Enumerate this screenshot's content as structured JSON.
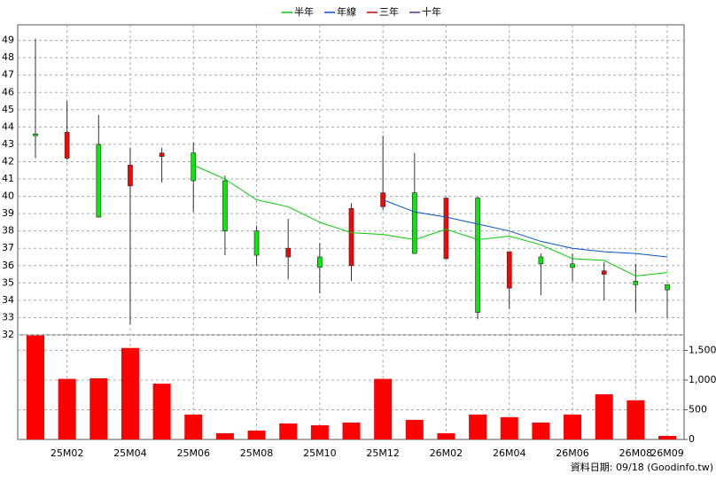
{
  "chart_data": [
    {
      "type": "candlestick",
      "categories": [
        null,
        "25M02",
        null,
        "25M04",
        null,
        "25M06",
        null,
        "25M08",
        null,
        "25M10",
        null,
        "25M12",
        null,
        "26M02",
        null,
        "26M04",
        null,
        "26M06",
        null,
        "26M08",
        "26M09"
      ],
      "open": [
        43.6,
        42.2,
        43.0,
        40.6,
        42.3,
        42.5,
        40.9,
        38.0,
        36.5,
        36.5,
        36.0,
        39.4,
        40.2,
        36.4,
        39.9,
        34.7,
        36.5,
        36.1,
        35.5,
        35.1,
        34.9
      ],
      "high": [
        49.1,
        45.5,
        44.7,
        42.8,
        42.8,
        43.1,
        41.2,
        38.3,
        38.7,
        37.3,
        39.6,
        43.5,
        42.5,
        39.9,
        40.0,
        36.8,
        36.7,
        36.7,
        36.2,
        36.1,
        34.9
      ],
      "low": [
        42.2,
        42.1,
        38.8,
        32.6,
        40.8,
        39.1,
        36.6,
        36.0,
        35.2,
        34.4,
        35.1,
        39.2,
        36.7,
        36.4,
        32.9,
        33.5,
        34.3,
        35.1,
        34.0,
        33.3,
        33.0
      ],
      "close": [
        43.5,
        43.7,
        38.8,
        41.8,
        42.5,
        40.9,
        38.0,
        36.6,
        37.0,
        35.9,
        39.3,
        40.2,
        36.7,
        39.9,
        33.3,
        36.8,
        36.1,
        35.9,
        35.7,
        34.9,
        34.6
      ],
      "up_color": "#ff0000",
      "down_color": "#00ee00",
      "series": [
        {
          "name": "半年",
          "color": "#00cc00",
          "values": [
            null,
            null,
            null,
            null,
            null,
            41.8,
            41.0,
            39.8,
            39.4,
            38.5,
            37.9,
            37.8,
            37.5,
            38.1,
            37.5,
            37.7,
            37.2,
            36.4,
            36.3,
            35.4,
            35.6
          ]
        },
        {
          "name": "年線",
          "color": "#0050d0",
          "values": [
            null,
            null,
            null,
            null,
            null,
            null,
            null,
            null,
            null,
            null,
            null,
            39.8,
            39.1,
            38.8,
            38.4,
            38.0,
            37.4,
            37.0,
            36.8,
            36.7,
            36.5
          ]
        },
        {
          "name": "三年",
          "color": "#cc0000",
          "values": [
            null,
            null,
            null,
            null,
            null,
            null,
            null,
            null,
            null,
            null,
            null,
            null,
            null,
            null,
            null,
            null,
            null,
            null,
            null,
            null,
            null
          ]
        },
        {
          "name": "十年",
          "color": "#5a2ca0",
          "values": [
            null,
            null,
            null,
            null,
            null,
            null,
            null,
            null,
            null,
            null,
            null,
            null,
            null,
            null,
            null,
            null,
            null,
            null,
            null,
            null,
            null
          ]
        }
      ],
      "ylim": [
        32,
        49.9
      ],
      "yticks": [
        32,
        33,
        34,
        35,
        36,
        37,
        38,
        39,
        40,
        41,
        42,
        43,
        44,
        45,
        46,
        47,
        48,
        49
      ],
      "grid": true,
      "legend": "top"
    },
    {
      "type": "bar",
      "values": [
        1750,
        1020,
        1030,
        1540,
        940,
        420,
        105,
        150,
        270,
        240,
        285,
        1020,
        330,
        105,
        420,
        375,
        285,
        420,
        760,
        660,
        60
      ],
      "color": "#ff0000",
      "ylim": [
        0,
        1760
      ],
      "yticks": [
        0,
        500,
        {
          "value": 1000,
          "label": "1,000"
        },
        {
          "value": 1500,
          "label": "1,500"
        }
      ],
      "grid": true
    }
  ],
  "footer": "資料日期: 09/18  (Goodinfo.tw)"
}
